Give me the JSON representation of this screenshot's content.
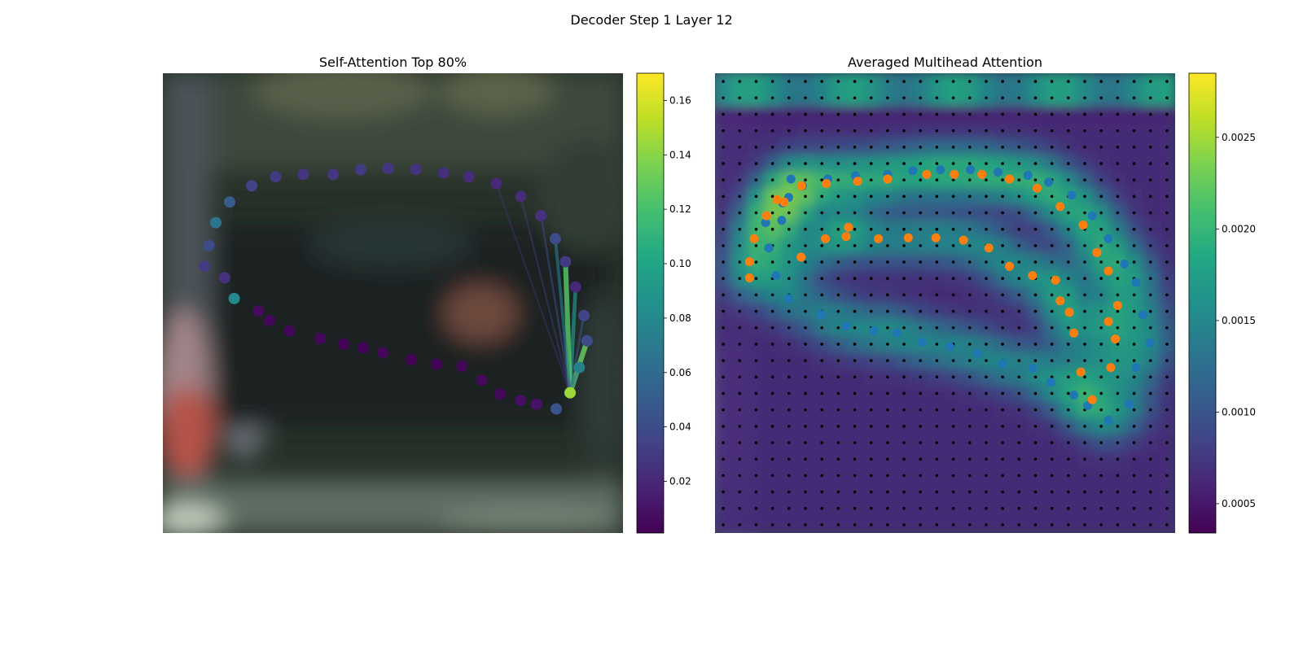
{
  "figure_title": "Decoder Step 1 Layer 12",
  "panels": {
    "left": {
      "title": "Self-Attention Top 80%"
    },
    "right": {
      "title": "Averaged Multihead Attention"
    }
  },
  "chart_data": [
    {
      "type": "scatter",
      "title": "Self-Attention Top 80%",
      "description_colormap": "viridis",
      "colorbar": {
        "min": 0.001,
        "max": 0.17,
        "ticks": [
          0.02,
          0.04,
          0.06,
          0.08,
          0.1,
          0.12,
          0.14,
          0.16
        ],
        "tick_labels": [
          "0.02",
          "0.04",
          "0.06",
          "0.08",
          "0.10",
          "0.12",
          "0.14",
          "0.16"
        ]
      },
      "query_index": 35,
      "points": [
        {
          "x": 0.09,
          "y": 0.42,
          "v": 0.03
        },
        {
          "x": 0.1,
          "y": 0.375,
          "v": 0.04
        },
        {
          "x": 0.115,
          "y": 0.325,
          "v": 0.065
        },
        {
          "x": 0.145,
          "y": 0.28,
          "v": 0.05
        },
        {
          "x": 0.193,
          "y": 0.245,
          "v": 0.035
        },
        {
          "x": 0.245,
          "y": 0.225,
          "v": 0.03
        },
        {
          "x": 0.305,
          "y": 0.22,
          "v": 0.028
        },
        {
          "x": 0.37,
          "y": 0.22,
          "v": 0.028
        },
        {
          "x": 0.43,
          "y": 0.21,
          "v": 0.03
        },
        {
          "x": 0.49,
          "y": 0.207,
          "v": 0.028
        },
        {
          "x": 0.55,
          "y": 0.209,
          "v": 0.026
        },
        {
          "x": 0.61,
          "y": 0.217,
          "v": 0.024
        },
        {
          "x": 0.665,
          "y": 0.225,
          "v": 0.022
        },
        {
          "x": 0.725,
          "y": 0.24,
          "v": 0.02
        },
        {
          "x": 0.778,
          "y": 0.268,
          "v": 0.022
        },
        {
          "x": 0.822,
          "y": 0.31,
          "v": 0.025
        },
        {
          "x": 0.853,
          "y": 0.36,
          "v": 0.04
        },
        {
          "x": 0.875,
          "y": 0.41,
          "v": 0.03
        },
        {
          "x": 0.897,
          "y": 0.465,
          "v": 0.02
        },
        {
          "x": 0.915,
          "y": 0.527,
          "v": 0.035
        },
        {
          "x": 0.922,
          "y": 0.582,
          "v": 0.04
        },
        {
          "x": 0.905,
          "y": 0.64,
          "v": 0.075
        },
        {
          "x": 0.855,
          "y": 0.73,
          "v": 0.045
        },
        {
          "x": 0.812,
          "y": 0.72,
          "v": 0.01
        },
        {
          "x": 0.777,
          "y": 0.712,
          "v": 0.008
        },
        {
          "x": 0.733,
          "y": 0.698,
          "v": 0.005
        },
        {
          "x": 0.693,
          "y": 0.668,
          "v": 0.005
        },
        {
          "x": 0.65,
          "y": 0.637,
          "v": 0.004
        },
        {
          "x": 0.595,
          "y": 0.633,
          "v": 0.003
        },
        {
          "x": 0.54,
          "y": 0.623,
          "v": 0.003
        },
        {
          "x": 0.478,
          "y": 0.608,
          "v": 0.004
        },
        {
          "x": 0.435,
          "y": 0.597,
          "v": 0.003
        },
        {
          "x": 0.393,
          "y": 0.589,
          "v": 0.003
        },
        {
          "x": 0.342,
          "y": 0.577,
          "v": 0.004
        },
        {
          "x": 0.275,
          "y": 0.56,
          "v": 0.004
        },
        {
          "x": 0.885,
          "y": 0.695,
          "v": 0.145
        },
        {
          "x": 0.232,
          "y": 0.538,
          "v": 0.004
        },
        {
          "x": 0.208,
          "y": 0.517,
          "v": 0.006
        },
        {
          "x": 0.155,
          "y": 0.49,
          "v": 0.08
        },
        {
          "x": 0.134,
          "y": 0.445,
          "v": 0.025
        }
      ],
      "edges": [
        {
          "to": 20,
          "v": 0.13
        },
        {
          "to": 21,
          "v": 0.075
        },
        {
          "to": 18,
          "v": 0.09
        },
        {
          "to": 17,
          "v": 0.125
        },
        {
          "to": 16,
          "v": 0.07
        },
        {
          "to": 19,
          "v": 0.045
        },
        {
          "to": 15,
          "v": 0.04
        },
        {
          "to": 14,
          "v": 0.03
        },
        {
          "to": 13,
          "v": 0.025
        }
      ]
    },
    {
      "type": "heatmap",
      "title": "Averaged Multihead Attention",
      "description_colormap": "viridis",
      "grid_size": 28,
      "colorbar": {
        "min": 0.00034,
        "max": 0.00285,
        "ticks": [
          0.0005,
          0.001,
          0.0015,
          0.002,
          0.0025
        ],
        "tick_labels": [
          "0.0005",
          "0.0010",
          "0.0015",
          "0.0020",
          "0.0025"
        ]
      },
      "series": [
        {
          "color": "#1f77b4",
          "points": [
            [
              0.19,
              0.245
            ],
            [
              0.245,
              0.23
            ],
            [
              0.305,
              0.223
            ],
            [
              0.375,
              0.22
            ],
            [
              0.43,
              0.212
            ],
            [
              0.49,
              0.21
            ],
            [
              0.555,
              0.21
            ],
            [
              0.615,
              0.215
            ],
            [
              0.68,
              0.222
            ],
            [
              0.725,
              0.237
            ],
            [
              0.775,
              0.265
            ],
            [
              0.82,
              0.31
            ],
            [
              0.855,
              0.36
            ],
            [
              0.89,
              0.415
            ],
            [
              0.915,
              0.455
            ],
            [
              0.93,
              0.525
            ],
            [
              0.945,
              0.587
            ],
            [
              0.915,
              0.64
            ],
            [
              0.9,
              0.72
            ],
            [
              0.855,
              0.755
            ],
            [
              0.81,
              0.723
            ],
            [
              0.78,
              0.7
            ],
            [
              0.73,
              0.672
            ],
            [
              0.69,
              0.642
            ],
            [
              0.625,
              0.632
            ],
            [
              0.57,
              0.609
            ],
            [
              0.51,
              0.595
            ],
            [
              0.45,
              0.585
            ],
            [
              0.395,
              0.565
            ],
            [
              0.345,
              0.56
            ],
            [
              0.285,
              0.55
            ],
            [
              0.23,
              0.525
            ],
            [
              0.16,
              0.49
            ],
            [
              0.133,
              0.44
            ],
            [
              0.117,
              0.38
            ],
            [
              0.11,
              0.325
            ],
            [
              0.147,
              0.282
            ],
            [
              0.165,
              0.23
            ],
            [
              0.16,
              0.27
            ],
            [
              0.145,
              0.32
            ]
          ]
        },
        {
          "color": "#ff7f0e",
          "points": [
            [
              0.075,
              0.445
            ],
            [
              0.075,
              0.41
            ],
            [
              0.085,
              0.36
            ],
            [
              0.112,
              0.31
            ],
            [
              0.135,
              0.275
            ],
            [
              0.15,
              0.28
            ],
            [
              0.187,
              0.4
            ],
            [
              0.188,
              0.245
            ],
            [
              0.242,
              0.24
            ],
            [
              0.31,
              0.235
            ],
            [
              0.375,
              0.23
            ],
            [
              0.46,
              0.22
            ],
            [
              0.52,
              0.22
            ],
            [
              0.58,
              0.22
            ],
            [
              0.64,
              0.23
            ],
            [
              0.7,
              0.25
            ],
            [
              0.75,
              0.29
            ],
            [
              0.8,
              0.33
            ],
            [
              0.83,
              0.39
            ],
            [
              0.855,
              0.43
            ],
            [
              0.875,
              0.505
            ],
            [
              0.87,
              0.578
            ],
            [
              0.86,
              0.64
            ],
            [
              0.82,
              0.71
            ],
            [
              0.795,
              0.65
            ],
            [
              0.78,
              0.565
            ],
            [
              0.77,
              0.52
            ],
            [
              0.75,
              0.495
            ],
            [
              0.74,
              0.45
            ],
            [
              0.69,
              0.44
            ],
            [
              0.64,
              0.42
            ],
            [
              0.595,
              0.38
            ],
            [
              0.54,
              0.363
            ],
            [
              0.48,
              0.358
            ],
            [
              0.42,
              0.358
            ],
            [
              0.355,
              0.36
            ],
            [
              0.285,
              0.355
            ],
            [
              0.24,
              0.36
            ],
            [
              0.29,
              0.335
            ],
            [
              0.855,
              0.54
            ]
          ]
        }
      ]
    }
  ]
}
